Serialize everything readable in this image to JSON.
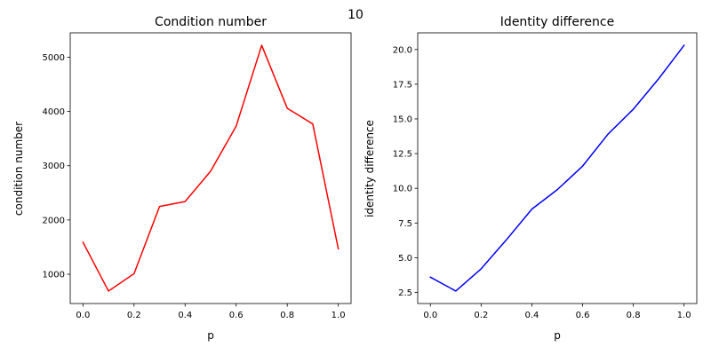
{
  "figure": {
    "suptitle": "10"
  },
  "chart_data": [
    {
      "type": "line",
      "title": "Condition number",
      "xlabel": "p",
      "ylabel": "condition number",
      "color": "#ff0000",
      "x": [
        0.0,
        0.1,
        0.2,
        0.3,
        0.4,
        0.5,
        0.6,
        0.7,
        0.8,
        0.9,
        1.0
      ],
      "y": [
        1590,
        690,
        1010,
        2250,
        2340,
        2900,
        3730,
        5220,
        4060,
        3770,
        1470
      ],
      "xlim": [
        -0.05,
        1.05
      ],
      "ylim": [
        460,
        5450
      ],
      "xticks": [
        0.0,
        0.2,
        0.4,
        0.6,
        0.8,
        1.0
      ],
      "xtick_labels": [
        "0.0",
        "0.2",
        "0.4",
        "0.6",
        "0.8",
        "1.0"
      ],
      "yticks": [
        1000,
        2000,
        3000,
        4000,
        5000
      ],
      "ytick_labels": [
        "1000",
        "2000",
        "3000",
        "4000",
        "5000"
      ],
      "grid": false
    },
    {
      "type": "line",
      "title": "Identity difference",
      "xlabel": "p",
      "ylabel": "identity difference",
      "color": "#0000ff",
      "x": [
        0.0,
        0.1,
        0.2,
        0.3,
        0.4,
        0.5,
        0.6,
        0.7,
        0.8,
        0.9,
        1.0
      ],
      "y": [
        3.6,
        2.6,
        4.2,
        6.3,
        8.5,
        9.9,
        11.6,
        13.9,
        15.7,
        17.9,
        20.3
      ],
      "xlim": [
        -0.05,
        1.05
      ],
      "ylim": [
        1.7,
        21.2
      ],
      "xticks": [
        0.0,
        0.2,
        0.4,
        0.6,
        0.8,
        1.0
      ],
      "xtick_labels": [
        "0.0",
        "0.2",
        "0.4",
        "0.6",
        "0.8",
        "1.0"
      ],
      "yticks": [
        2.5,
        5.0,
        7.5,
        10.0,
        12.5,
        15.0,
        17.5,
        20.0
      ],
      "ytick_labels": [
        "2.5",
        "5.0",
        "7.5",
        "10.0",
        "12.5",
        "15.0",
        "17.5",
        "20.0"
      ],
      "grid": false
    }
  ]
}
